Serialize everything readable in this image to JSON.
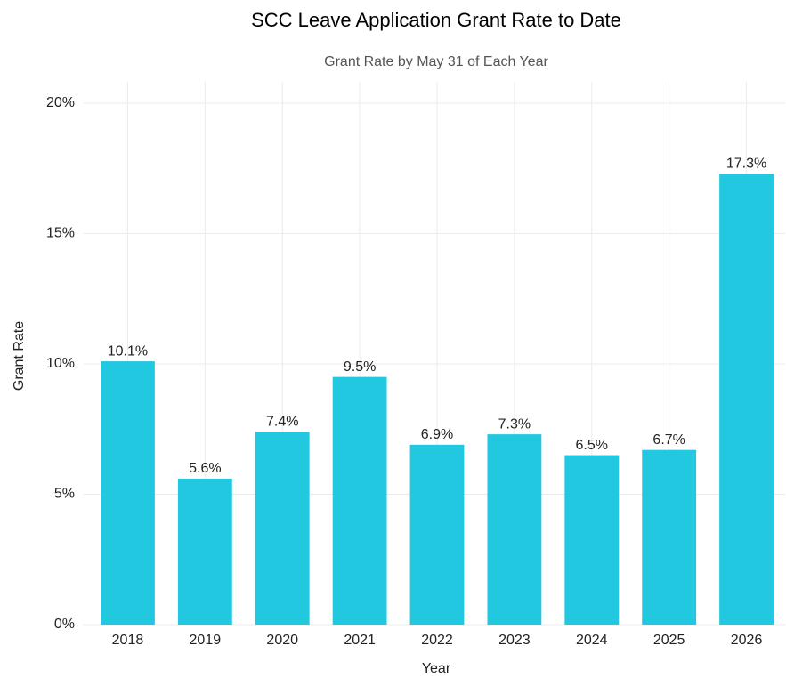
{
  "chart_data": {
    "type": "bar",
    "title": "SCC Leave Application Grant Rate to Date",
    "subtitle": "Grant Rate by May 31 of Each Year",
    "x_label": "Year",
    "y_label": "Grant Rate",
    "categories": [
      "2018",
      "2019",
      "2020",
      "2021",
      "2022",
      "2023",
      "2024",
      "2025",
      "2026"
    ],
    "values": [
      10.1,
      5.6,
      7.4,
      9.5,
      6.9,
      7.3,
      6.5,
      6.7,
      17.3
    ],
    "value_labels": [
      "10.1%",
      "5.6%",
      "7.4%",
      "9.5%",
      "6.9%",
      "7.3%",
      "6.5%",
      "6.7%",
      "17.3%"
    ],
    "color": "#22c7e0",
    "ylim": [
      0,
      20
    ],
    "yticks": [
      {
        "value": 0,
        "label": "0%"
      },
      {
        "value": 5,
        "label": "5%"
      },
      {
        "value": 10,
        "label": "10%"
      },
      {
        "value": 15,
        "label": "15%"
      },
      {
        "value": 20,
        "label": "20%"
      }
    ],
    "grid": true
  }
}
